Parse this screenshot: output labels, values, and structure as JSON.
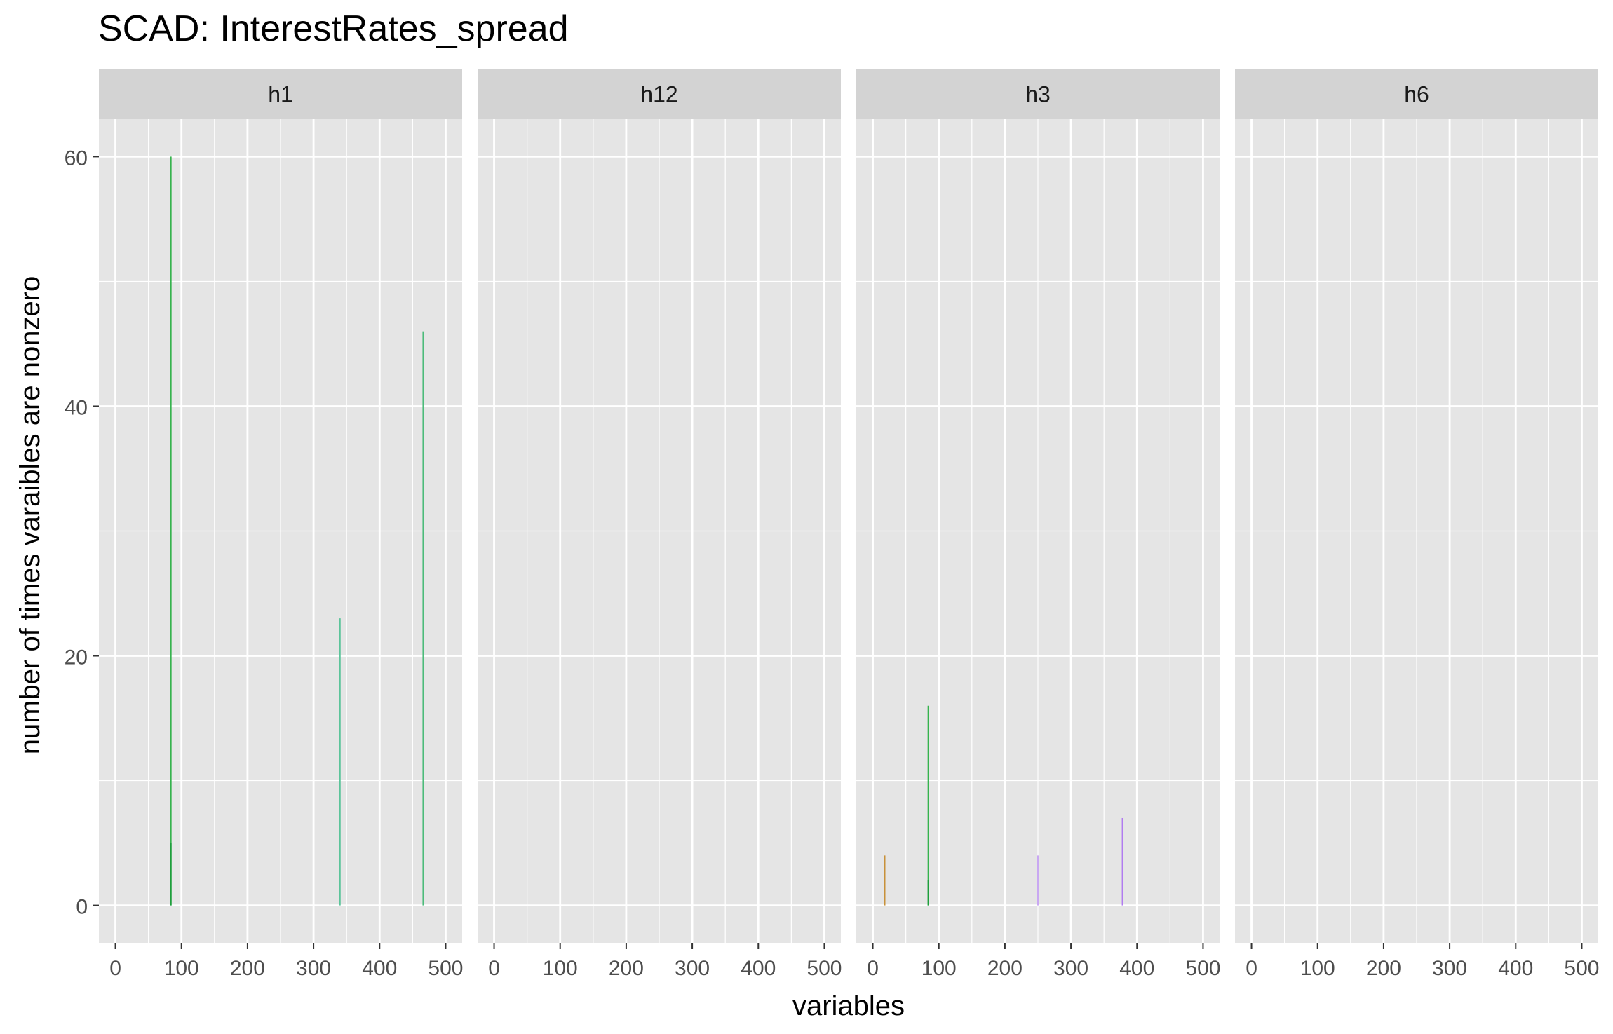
{
  "chart_data": {
    "type": "bar",
    "title": "SCAD: InterestRates_spread",
    "xlabel": "variables",
    "ylabel": "number of times varaibles are nonzero",
    "xlim": [
      -25,
      525
    ],
    "ylim": [
      -3,
      63
    ],
    "x_ticks": [
      0,
      100,
      200,
      300,
      400,
      500
    ],
    "y_ticks": [
      0,
      20,
      40,
      60
    ],
    "grid": true,
    "colors": {
      "panel_background": "#E5E5E5",
      "strip_background": "#D3D3D3",
      "grid": "#FFFFFF",
      "green_dark": "#1E9E3C",
      "green": "#36B34E",
      "green_light": "#5CC49A",
      "orange": "#C8913A",
      "purple": "#B07CF0"
    },
    "facets": [
      {
        "label": "h1",
        "bars": [
          {
            "x": 84,
            "value": 60,
            "color": "#36B34E"
          },
          {
            "x": 84,
            "value": 5,
            "color": "#1E9E3C"
          },
          {
            "x": 340,
            "value": 23,
            "color": "#5CC49A"
          },
          {
            "x": 466,
            "value": 46,
            "color": "#4CBB7A"
          }
        ]
      },
      {
        "label": "h12",
        "bars": []
      },
      {
        "label": "h3",
        "bars": [
          {
            "x": 18,
            "value": 4,
            "color": "#C8913A"
          },
          {
            "x": 84,
            "value": 16,
            "color": "#36B34E"
          },
          {
            "x": 84,
            "value": 2,
            "color": "#1E9E3C"
          },
          {
            "x": 250,
            "value": 4,
            "color": "#C9A8F2"
          },
          {
            "x": 378,
            "value": 7,
            "color": "#B07CF0"
          }
        ]
      },
      {
        "label": "h6",
        "bars": []
      }
    ]
  }
}
